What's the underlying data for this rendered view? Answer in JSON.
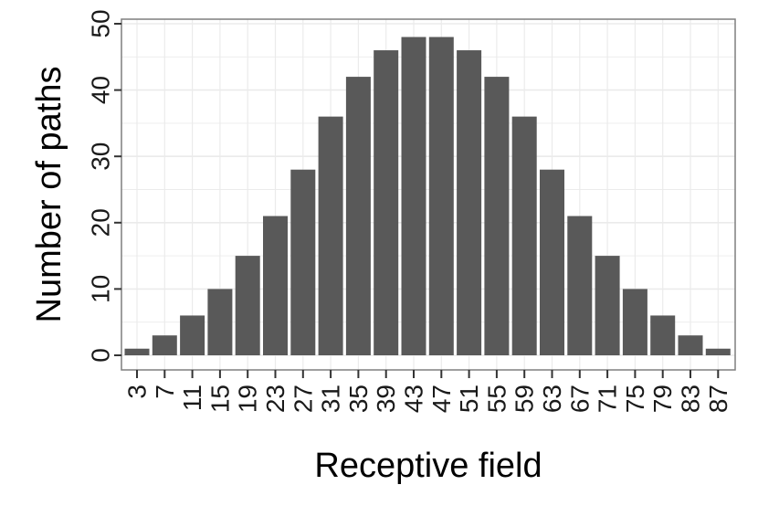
{
  "chart_data": {
    "type": "bar",
    "xlabel": "Receptive field",
    "ylabel": "Number of paths",
    "categories": [
      "3",
      "7",
      "11",
      "15",
      "19",
      "23",
      "27",
      "31",
      "35",
      "39",
      "43",
      "47",
      "51",
      "55",
      "59",
      "63",
      "67",
      "71",
      "75",
      "79",
      "83",
      "87"
    ],
    "values": [
      1,
      3,
      6,
      10,
      15,
      21,
      28,
      36,
      42,
      46,
      48,
      48,
      46,
      42,
      36,
      28,
      21,
      15,
      10,
      6,
      3,
      1
    ],
    "ylim": [
      0,
      50
    ],
    "yticks": [
      "0",
      "10",
      "20",
      "30",
      "40",
      "50"
    ],
    "grid": true,
    "legend": "none",
    "colors": {
      "bar": "#595959",
      "grid": "#ebebeb",
      "panel_border": "#7f7f7f",
      "tick": "#333333"
    }
  }
}
